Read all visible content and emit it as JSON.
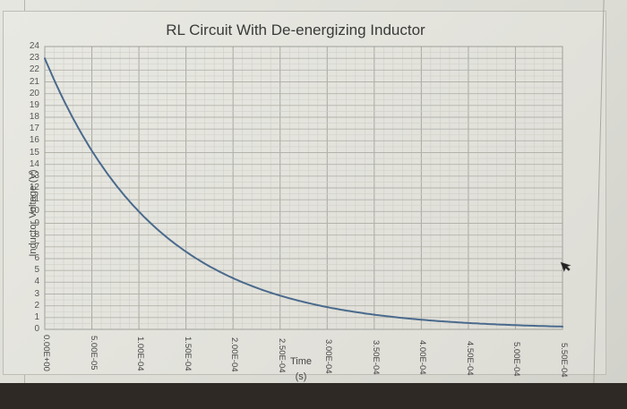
{
  "chart_data": {
    "type": "line",
    "title": "RL Circuit With De-energizing Inductor",
    "xlabel_line1": "Time",
    "xlabel_line2": "(s)",
    "ylabel": "Inductor Voltage (V)",
    "xlim": [
      0,
      0.00055
    ],
    "ylim": [
      0,
      24
    ],
    "grid": true,
    "legend": "none",
    "x_tick_labels": [
      "0.00E+00",
      "5.00E-05",
      "1.00E-04",
      "1.50E-04",
      "2.00E-04",
      "2.50E-04",
      "3.00E-04",
      "3.50E-04",
      "4.00E-04",
      "4.50E-04",
      "5.00E-04",
      "5.50E-04"
    ],
    "y_tick_labels": [
      "0",
      "1",
      "2",
      "3",
      "4",
      "5",
      "6",
      "7",
      "8",
      "9",
      "10",
      "11",
      "12",
      "13",
      "14",
      "15",
      "16",
      "17",
      "18",
      "19",
      "20",
      "21",
      "22",
      "23",
      "24"
    ],
    "series": [
      {
        "name": "Inductor Voltage",
        "color": "#4a6a8c",
        "x": [
          0,
          2.5e-05,
          5e-05,
          7.5e-05,
          0.0001,
          0.000125,
          0.00015,
          0.000175,
          0.0002,
          0.00025,
          0.0003,
          0.00035,
          0.0004,
          0.00045,
          0.0005,
          0.00055
        ],
        "values": [
          23.0,
          18.6,
          15.1,
          12.2,
          10.0,
          8.1,
          6.6,
          5.3,
          4.3,
          2.9,
          1.9,
          1.2,
          0.8,
          0.55,
          0.36,
          0.24
        ]
      }
    ]
  },
  "ui": {
    "mouse_cursor": "arrow-cursor"
  }
}
